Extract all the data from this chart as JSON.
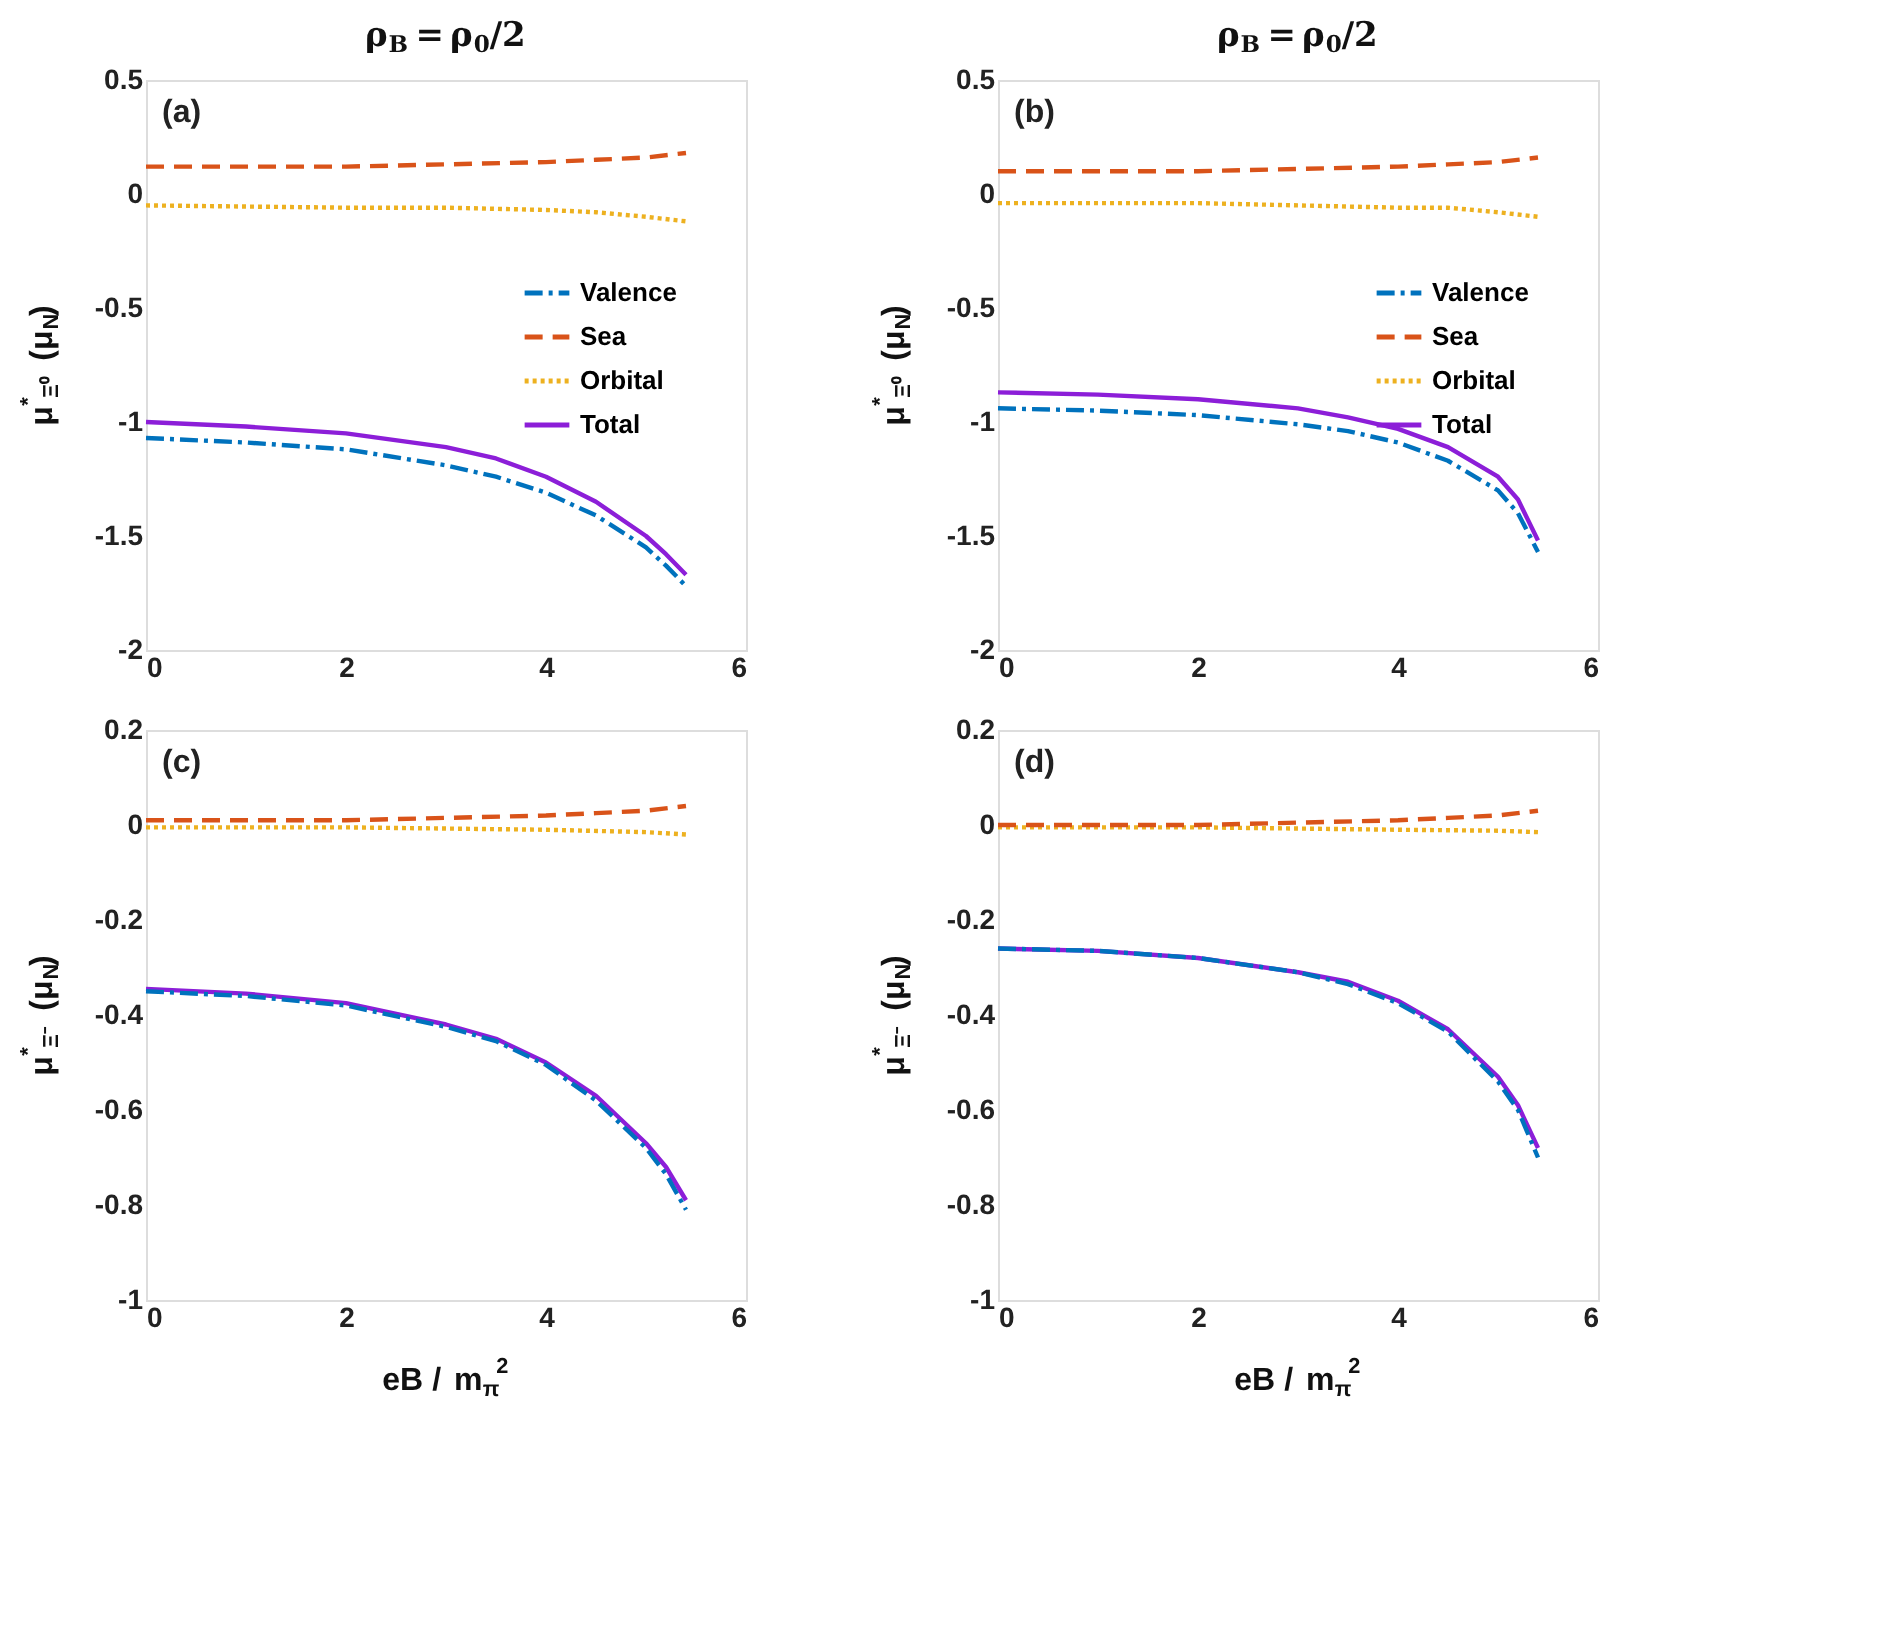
{
  "chart_data": [
    {
      "type": "line",
      "title": "ρ$_{B}$ = ρ$_{0}$/2",
      "ylabel": "μ$^{*}$$_{Ξ⁰}$ (μ$_{N}$)",
      "annotations": [
        "(a)"
      ],
      "xlim": [
        0,
        6
      ],
      "xticks": [
        0,
        2,
        4,
        6
      ],
      "ylim": [
        -2,
        0.5
      ],
      "yticks": [
        -2,
        -1.5,
        -1,
        -0.5,
        0,
        0.5
      ],
      "legend": "right",
      "grid": false,
      "series": [
        {
          "name": "Valence",
          "color": "#0072bd",
          "line_style": "dashdot",
          "x": [
            0,
            1,
            2,
            3,
            3.5,
            4,
            4.5,
            5,
            5.2,
            5.4
          ],
          "values": [
            -1.07,
            -1.09,
            -1.12,
            -1.19,
            -1.24,
            -1.31,
            -1.41,
            -1.55,
            -1.63,
            -1.72
          ]
        },
        {
          "name": "Sea",
          "color": "#d95319",
          "line_style": "dashed",
          "x": [
            0,
            2,
            3,
            4,
            4.5,
            5,
            5.4
          ],
          "values": [
            0.12,
            0.12,
            0.13,
            0.14,
            0.15,
            0.16,
            0.18
          ]
        },
        {
          "name": "Orbital",
          "color": "#edb120",
          "line_style": "dotted",
          "x": [
            0,
            2,
            3,
            4,
            4.5,
            5,
            5.4
          ],
          "values": [
            -0.05,
            -0.06,
            -0.06,
            -0.07,
            -0.08,
            -0.1,
            -0.12
          ]
        },
        {
          "name": "Total",
          "color": "#8c1ed8",
          "line_style": "solid",
          "x": [
            0,
            1,
            2,
            3,
            3.5,
            4,
            4.5,
            5,
            5.2,
            5.4
          ],
          "values": [
            -1.0,
            -1.02,
            -1.05,
            -1.11,
            -1.16,
            -1.24,
            -1.35,
            -1.5,
            -1.58,
            -1.67
          ]
        }
      ]
    },
    {
      "type": "line",
      "title": "ρ$_{B}$ = ρ$_{0}$/2",
      "ylabel": "μ$^{*}$$_{Ξ⁰}$ (μ$_{N}$)",
      "annotations": [
        "(b)"
      ],
      "xlim": [
        0,
        6
      ],
      "xticks": [
        0,
        2,
        4,
        6
      ],
      "ylim": [
        -2,
        0.5
      ],
      "yticks": [
        -2,
        -1.5,
        -1,
        -0.5,
        0,
        0.5
      ],
      "legend": "right",
      "grid": false,
      "series": [
        {
          "name": "Valence",
          "color": "#0072bd",
          "line_style": "dashdot",
          "x": [
            0,
            1,
            2,
            3,
            3.5,
            4,
            4.5,
            5,
            5.2,
            5.4
          ],
          "values": [
            -0.94,
            -0.95,
            -0.97,
            -1.01,
            -1.04,
            -1.09,
            -1.17,
            -1.3,
            -1.4,
            -1.57
          ]
        },
        {
          "name": "Sea",
          "color": "#d95319",
          "line_style": "dashed",
          "x": [
            0,
            2,
            3,
            4,
            4.5,
            5,
            5.4
          ],
          "values": [
            0.1,
            0.1,
            0.11,
            0.12,
            0.13,
            0.14,
            0.16
          ]
        },
        {
          "name": "Orbital",
          "color": "#edb120",
          "line_style": "dotted",
          "x": [
            0,
            2,
            3,
            4,
            4.5,
            5,
            5.4
          ],
          "values": [
            -0.04,
            -0.04,
            -0.05,
            -0.06,
            -0.06,
            -0.08,
            -0.1
          ]
        },
        {
          "name": "Total",
          "color": "#8c1ed8",
          "line_style": "solid",
          "x": [
            0,
            1,
            2,
            3,
            3.5,
            4,
            4.5,
            5,
            5.2,
            5.4
          ],
          "values": [
            -0.87,
            -0.88,
            -0.9,
            -0.94,
            -0.98,
            -1.03,
            -1.11,
            -1.24,
            -1.34,
            -1.52
          ]
        }
      ]
    },
    {
      "type": "line",
      "xlabel": "eB / m$_{π}$$^{2}$",
      "ylabel": "μ$^{*}$$_{Ξ⁻}$ (μ$_{N}$)",
      "annotations": [
        "(c)"
      ],
      "xlim": [
        0,
        6
      ],
      "xticks": [
        0,
        2,
        4,
        6
      ],
      "ylim": [
        -1,
        0.2
      ],
      "yticks": [
        -1,
        -0.8,
        -0.6,
        -0.4,
        -0.2,
        0,
        0.2
      ],
      "grid": false,
      "series": [
        {
          "color": "#0072bd",
          "line_style": "dashdot",
          "x": [
            0,
            1,
            2,
            3,
            3.5,
            4,
            4.5,
            5,
            5.2,
            5.4
          ],
          "values": [
            -0.35,
            -0.36,
            -0.38,
            -0.425,
            -0.455,
            -0.505,
            -0.58,
            -0.68,
            -0.735,
            -0.81
          ]
        },
        {
          "color": "#d95319",
          "line_style": "dashed",
          "x": [
            0,
            2,
            3,
            4,
            4.5,
            5,
            5.4
          ],
          "values": [
            0.01,
            0.01,
            0.015,
            0.02,
            0.025,
            0.03,
            0.04
          ]
        },
        {
          "color": "#edb120",
          "line_style": "dotted",
          "x": [
            0,
            2,
            4,
            5,
            5.4
          ],
          "values": [
            -0.005,
            -0.005,
            -0.01,
            -0.015,
            -0.02
          ]
        },
        {
          "color": "#8c1ed8",
          "line_style": "solid",
          "x": [
            0,
            1,
            2,
            3,
            3.5,
            4,
            4.5,
            5,
            5.2,
            5.4
          ],
          "values": [
            -0.345,
            -0.355,
            -0.375,
            -0.42,
            -0.45,
            -0.5,
            -0.57,
            -0.67,
            -0.72,
            -0.79
          ]
        }
      ]
    },
    {
      "type": "line",
      "xlabel": "eB / m$_{π}$$^{2}$",
      "ylabel": "μ$^{*}$$_{Ξ⁻}$ (μ$_{N}$)",
      "annotations": [
        "(d)"
      ],
      "xlim": [
        0,
        6
      ],
      "xticks": [
        0,
        2,
        4,
        6
      ],
      "ylim": [
        -1,
        0.2
      ],
      "yticks": [
        -1,
        -0.8,
        -0.6,
        -0.4,
        -0.2,
        0,
        0.2
      ],
      "grid": false,
      "series": [
        {
          "color": "#0072bd",
          "line_style": "dashdot",
          "x": [
            0,
            1,
            2,
            3,
            3.5,
            4,
            4.5,
            5,
            5.2,
            5.4
          ],
          "values": [
            -0.26,
            -0.265,
            -0.28,
            -0.31,
            -0.335,
            -0.375,
            -0.435,
            -0.54,
            -0.6,
            -0.7
          ]
        },
        {
          "color": "#d95319",
          "line_style": "dashed",
          "x": [
            0,
            2,
            3,
            4,
            4.5,
            5,
            5.4
          ],
          "values": [
            0.0,
            0.0,
            0.005,
            0.01,
            0.015,
            0.02,
            0.03
          ]
        },
        {
          "color": "#edb120",
          "line_style": "dotted",
          "x": [
            0,
            2,
            4,
            5,
            5.4
          ],
          "values": [
            -0.005,
            -0.005,
            -0.01,
            -0.012,
            -0.015
          ]
        },
        {
          "color": "#8c1ed8",
          "line_style": "solid",
          "x": [
            0,
            1,
            2,
            3,
            3.5,
            4,
            4.5,
            5,
            5.2,
            5.4
          ],
          "values": [
            -0.26,
            -0.265,
            -0.28,
            -0.31,
            -0.33,
            -0.37,
            -0.43,
            -0.53,
            -0.59,
            -0.68
          ]
        }
      ]
    }
  ]
}
